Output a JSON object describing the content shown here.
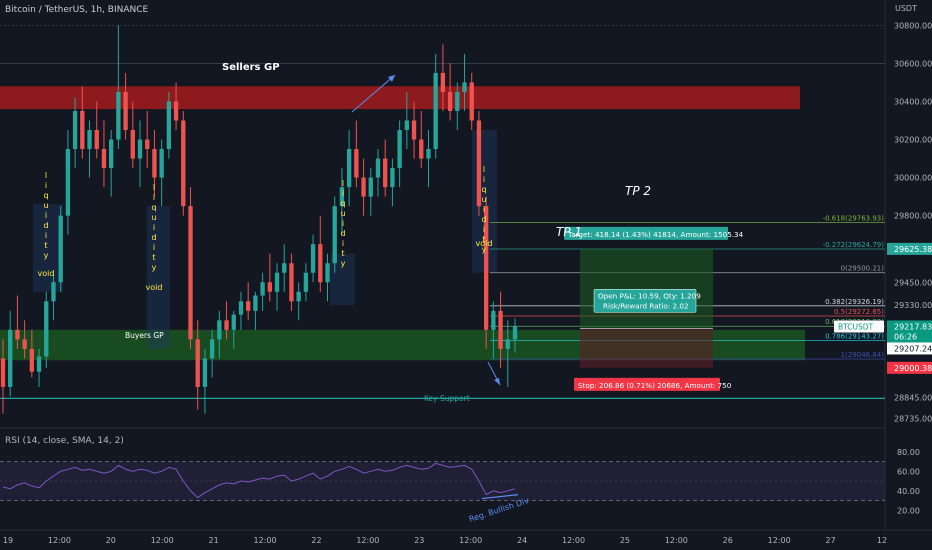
{
  "header": {
    "title": "Bitcoin / TetherUS, 1h, BINANCE",
    "unit": "USDT"
  },
  "rsi_header": "RSI (14, close, SMA, 14, 2)",
  "chart_data": {
    "type": "candlestick",
    "symbol": "BTCUSDT",
    "price_axis": {
      "ylim": [
        28700,
        30870
      ],
      "ticks": [
        30800,
        30600,
        30400,
        30200,
        30000,
        29800,
        29450,
        29330,
        28845,
        28735
      ],
      "tick_labels": [
        "30800.00",
        "30600.00",
        "30400.00",
        "30200.00",
        "30000.00",
        "29800.00",
        "29450.00",
        "29330.00",
        "28845.00",
        "28735.00"
      ]
    },
    "time_axis": {
      "labels": [
        "19",
        "12:00",
        "20",
        "12:00",
        "21",
        "12:00",
        "22",
        "12:00",
        "23",
        "12:00",
        "24",
        "12:00",
        "25",
        "12:00",
        "26",
        "12:00",
        "27",
        "12"
      ]
    },
    "price_tags": [
      {
        "label": "29625.38",
        "value": 29625.38,
        "color": "#26a69a"
      },
      {
        "label": "BTCUSDT",
        "value": 29217.83,
        "color": "#089981"
      },
      {
        "label": "29217.83",
        "value": 29217.83,
        "color": "#089981"
      },
      {
        "label": "06:26",
        "value": 29180,
        "color": "#089981"
      },
      {
        "label": "29207.24",
        "value": 29135,
        "color": "#ffffff"
      },
      {
        "label": "29000.38",
        "value": 29000.38,
        "color": "#f23645"
      }
    ],
    "fib_levels": [
      {
        "label": "-0.618(29763.93)",
        "value": 29763.93,
        "color": "#7cb342"
      },
      {
        "label": "-0.272(29624.79)",
        "value": 29624.79,
        "color": "#26a69a"
      },
      {
        "label": "0(29500.21)",
        "value": 29500.21,
        "color": "#9598a1"
      },
      {
        "label": "0.382(29326.19)",
        "value": 29326.19,
        "color": "#d1d4dc"
      },
      {
        "label": "0.5(29272.65)",
        "value": 29272.65,
        "color": "#ef5350"
      },
      {
        "label": "0.618(29218.93)",
        "value": 29218.93,
        "color": "#66bb6a"
      },
      {
        "label": "0.786(29143.27)",
        "value": 29143.27,
        "color": "#26c6da"
      },
      {
        "label": "1(29046.84)",
        "value": 29046.84,
        "color": "#3f51b5"
      }
    ],
    "position": {
      "entry": 29207.24,
      "target": 29625.38,
      "stop": 29000.38,
      "target_label": "Target: 418.14 (1.43%) 41814, Amount: 1505.34",
      "pnl_label": "Open P&L: 10.59, Qty: 1.209",
      "rr_label": "Risk/Reward Ratio: 2.02",
      "stop_label": "Stop: 206.86 (0.71%) 20686, Amount: 750"
    },
    "zones": [
      {
        "label": "Sellers GP",
        "from": 30360,
        "to": 30480,
        "color": "#b71c1c"
      },
      {
        "label": "Buyers GP",
        "from": 29040,
        "to": 29200,
        "color": "#1b5e20"
      }
    ],
    "support": {
      "label": "Key Support",
      "value": 28840
    },
    "annotations": [
      "TP 2",
      "TP 1",
      "liquidity",
      "void",
      "Reg. Bullish Div"
    ],
    "candles": [
      {
        "o": 29050,
        "h": 29150,
        "l": 28760,
        "c": 28900
      },
      {
        "o": 28900,
        "h": 29300,
        "l": 28850,
        "c": 29200
      },
      {
        "o": 29200,
        "h": 29380,
        "l": 29100,
        "c": 29150
      },
      {
        "o": 29150,
        "h": 29250,
        "l": 29050,
        "c": 29100
      },
      {
        "o": 29100,
        "h": 29200,
        "l": 28950,
        "c": 28980
      },
      {
        "o": 28980,
        "h": 29100,
        "l": 28900,
        "c": 29060
      },
      {
        "o": 29060,
        "h": 29400,
        "l": 29000,
        "c": 29350
      },
      {
        "o": 29350,
        "h": 29500,
        "l": 29250,
        "c": 29450
      },
      {
        "o": 29450,
        "h": 29850,
        "l": 29400,
        "c": 29800
      },
      {
        "o": 29800,
        "h": 30250,
        "l": 29700,
        "c": 30150
      },
      {
        "o": 30150,
        "h": 30420,
        "l": 30050,
        "c": 30350
      },
      {
        "o": 30350,
        "h": 30480,
        "l": 30100,
        "c": 30150
      },
      {
        "o": 30150,
        "h": 30300,
        "l": 30000,
        "c": 30250
      },
      {
        "o": 30250,
        "h": 30400,
        "l": 30100,
        "c": 30150
      },
      {
        "o": 30150,
        "h": 30300,
        "l": 29950,
        "c": 30050
      },
      {
        "o": 30050,
        "h": 30250,
        "l": 29900,
        "c": 30200
      },
      {
        "o": 30200,
        "h": 30800,
        "l": 30150,
        "c": 30450
      },
      {
        "o": 30450,
        "h": 30550,
        "l": 30200,
        "c": 30250
      },
      {
        "o": 30250,
        "h": 30400,
        "l": 30050,
        "c": 30100
      },
      {
        "o": 30100,
        "h": 30300,
        "l": 29950,
        "c": 30200
      },
      {
        "o": 30200,
        "h": 30350,
        "l": 30050,
        "c": 30150
      },
      {
        "o": 30150,
        "h": 30250,
        "l": 29900,
        "c": 30000
      },
      {
        "o": 30000,
        "h": 30200,
        "l": 29850,
        "c": 30150
      },
      {
        "o": 30150,
        "h": 30450,
        "l": 30100,
        "c": 30400
      },
      {
        "o": 30400,
        "h": 30500,
        "l": 30250,
        "c": 30300
      },
      {
        "o": 30300,
        "h": 30350,
        "l": 29800,
        "c": 29850
      },
      {
        "o": 29850,
        "h": 29950,
        "l": 29100,
        "c": 29150
      },
      {
        "o": 29150,
        "h": 29250,
        "l": 28780,
        "c": 28900
      },
      {
        "o": 28900,
        "h": 29100,
        "l": 28760,
        "c": 29050
      },
      {
        "o": 29050,
        "h": 29200,
        "l": 28950,
        "c": 29150
      },
      {
        "o": 29150,
        "h": 29300,
        "l": 29050,
        "c": 29250
      },
      {
        "o": 29250,
        "h": 29350,
        "l": 29150,
        "c": 29200
      },
      {
        "o": 29200,
        "h": 29300,
        "l": 29100,
        "c": 29280
      },
      {
        "o": 29280,
        "h": 29400,
        "l": 29200,
        "c": 29350
      },
      {
        "o": 29350,
        "h": 29450,
        "l": 29250,
        "c": 29300
      },
      {
        "o": 29300,
        "h": 29400,
        "l": 29200,
        "c": 29380
      },
      {
        "o": 29380,
        "h": 29500,
        "l": 29300,
        "c": 29450
      },
      {
        "o": 29450,
        "h": 29600,
        "l": 29350,
        "c": 29400
      },
      {
        "o": 29400,
        "h": 29550,
        "l": 29300,
        "c": 29500
      },
      {
        "o": 29500,
        "h": 29650,
        "l": 29400,
        "c": 29550
      },
      {
        "o": 29550,
        "h": 29600,
        "l": 29300,
        "c": 29350
      },
      {
        "o": 29350,
        "h": 29450,
        "l": 29250,
        "c": 29400
      },
      {
        "o": 29400,
        "h": 29550,
        "l": 29350,
        "c": 29500
      },
      {
        "o": 29500,
        "h": 29700,
        "l": 29450,
        "c": 29650
      },
      {
        "o": 29650,
        "h": 29800,
        "l": 29400,
        "c": 29450
      },
      {
        "o": 29450,
        "h": 29600,
        "l": 29350,
        "c": 29550
      },
      {
        "o": 29550,
        "h": 29900,
        "l": 29500,
        "c": 29850
      },
      {
        "o": 29850,
        "h": 30050,
        "l": 29700,
        "c": 29950
      },
      {
        "o": 29950,
        "h": 30250,
        "l": 29850,
        "c": 30150
      },
      {
        "o": 30150,
        "h": 30300,
        "l": 29950,
        "c": 30000
      },
      {
        "o": 30000,
        "h": 30100,
        "l": 29800,
        "c": 29900
      },
      {
        "o": 29900,
        "h": 30050,
        "l": 29800,
        "c": 30000
      },
      {
        "o": 30000,
        "h": 30150,
        "l": 29900,
        "c": 30100
      },
      {
        "o": 30100,
        "h": 30200,
        "l": 29900,
        "c": 29950
      },
      {
        "o": 29950,
        "h": 30100,
        "l": 29850,
        "c": 30050
      },
      {
        "o": 30050,
        "h": 30300,
        "l": 29950,
        "c": 30250
      },
      {
        "o": 30250,
        "h": 30450,
        "l": 30150,
        "c": 30300
      },
      {
        "o": 30300,
        "h": 30400,
        "l": 30100,
        "c": 30200
      },
      {
        "o": 30200,
        "h": 30350,
        "l": 30050,
        "c": 30100
      },
      {
        "o": 30100,
        "h": 30250,
        "l": 29950,
        "c": 30150
      },
      {
        "o": 30150,
        "h": 30650,
        "l": 30100,
        "c": 30550
      },
      {
        "o": 30550,
        "h": 30700,
        "l": 30350,
        "c": 30450
      },
      {
        "o": 30450,
        "h": 30600,
        "l": 30300,
        "c": 30350
      },
      {
        "o": 30350,
        "h": 30500,
        "l": 30250,
        "c": 30450
      },
      {
        "o": 30450,
        "h": 30650,
        "l": 30350,
        "c": 30500
      },
      {
        "o": 30500,
        "h": 30550,
        "l": 30250,
        "c": 30300
      },
      {
        "o": 30300,
        "h": 30350,
        "l": 29800,
        "c": 29850
      },
      {
        "o": 29850,
        "h": 29900,
        "l": 29100,
        "c": 29200
      },
      {
        "o": 29200,
        "h": 29350,
        "l": 29050,
        "c": 29300
      },
      {
        "o": 29300,
        "h": 29400,
        "l": 29000,
        "c": 29100
      },
      {
        "o": 29100,
        "h": 29250,
        "l": 28900,
        "c": 29150
      },
      {
        "o": 29150,
        "h": 29260,
        "l": 29080,
        "c": 29217
      }
    ]
  },
  "rsi": {
    "axis_ticks": [
      80,
      60,
      40,
      20
    ],
    "axis_labels": [
      "80.00",
      "60.00",
      "40.00",
      "20.00"
    ],
    "bands": [
      70,
      30
    ],
    "values": [
      44,
      42,
      46,
      48,
      45,
      43,
      50,
      55,
      60,
      62,
      64,
      61,
      62,
      60,
      58,
      60,
      66,
      62,
      60,
      62,
      61,
      58,
      60,
      64,
      62,
      50,
      40,
      33,
      38,
      42,
      46,
      48,
      47,
      50,
      49,
      51,
      53,
      52,
      55,
      56,
      50,
      52,
      55,
      58,
      52,
      55,
      60,
      62,
      65,
      62,
      58,
      60,
      62,
      60,
      61,
      64,
      66,
      64,
      62,
      63,
      68,
      66,
      64,
      65,
      66,
      62,
      50,
      36,
      40,
      38,
      40,
      42
    ]
  }
}
